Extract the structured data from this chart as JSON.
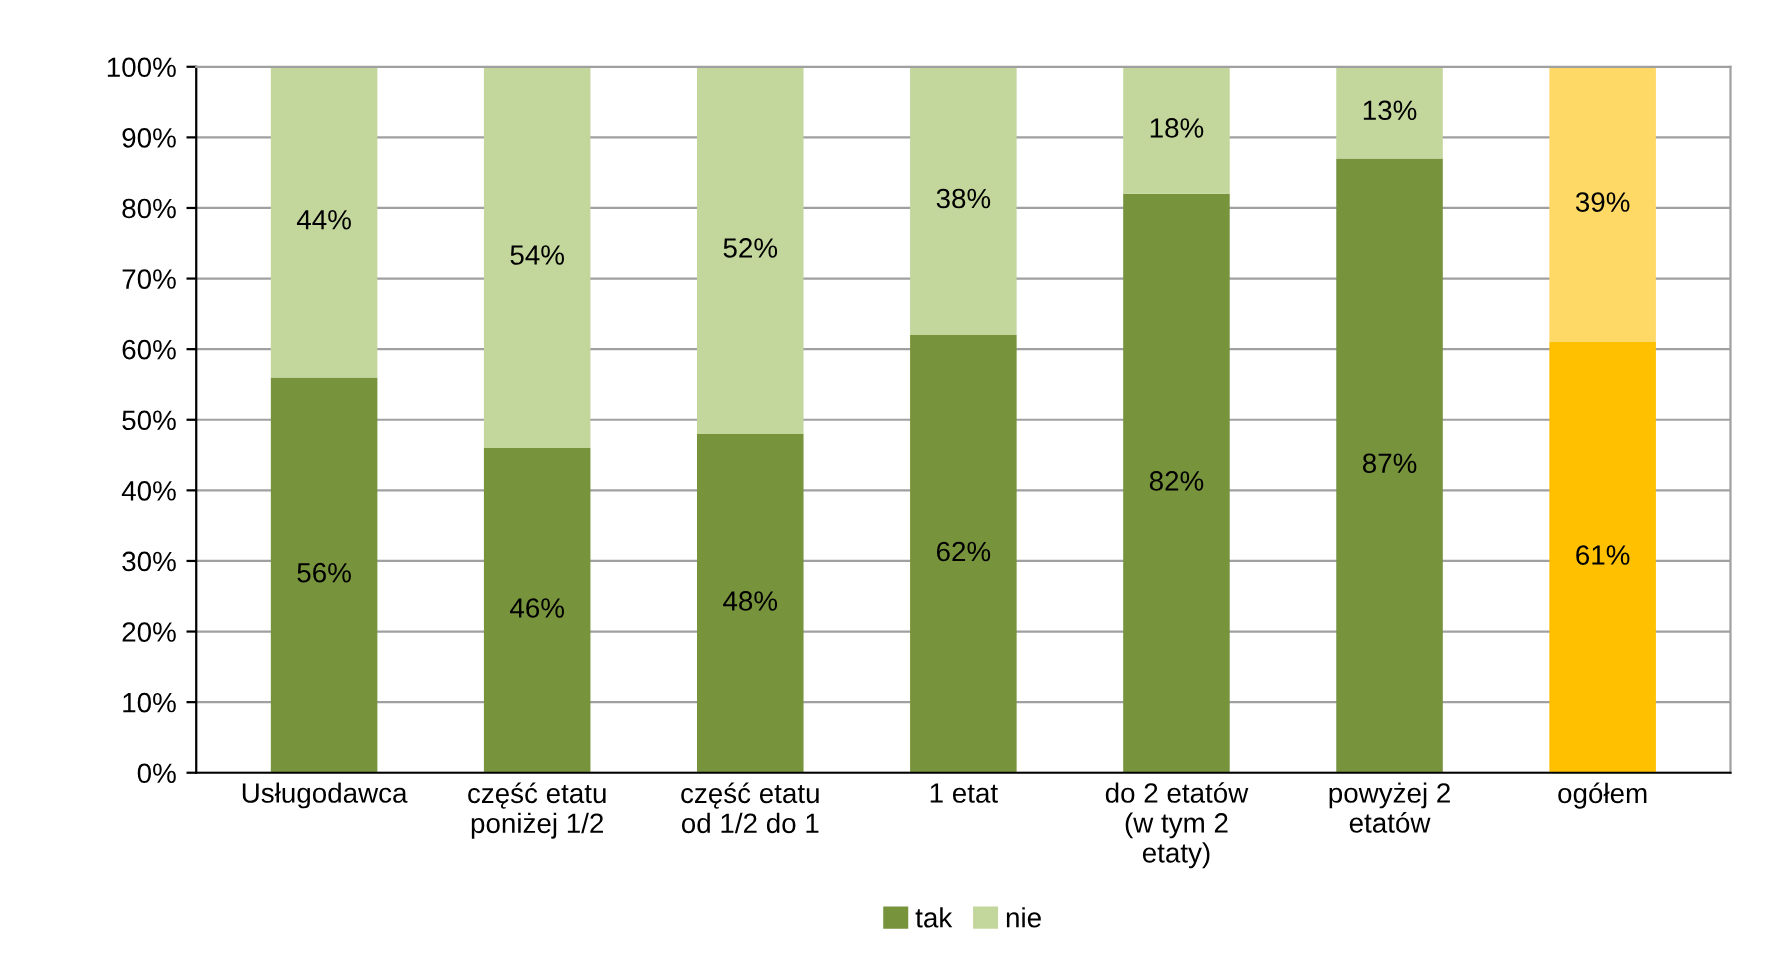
{
  "chart_data": {
    "type": "bar",
    "stacked": true,
    "categories": [
      "Usługodawca",
      "część etatu\nponiżej 1/2",
      "część etatu\nod 1/2 do 1",
      "1 etat",
      "do 2 etatów\n(w tym 2\netaty)",
      "powyżej 2\netatów",
      "ogółem"
    ],
    "series": [
      {
        "name": "tak",
        "color": "#77933c",
        "colors": [
          "#77933c",
          "#77933c",
          "#77933c",
          "#77933c",
          "#77933c",
          "#77933c",
          "#ffc000"
        ],
        "values": [
          56,
          46,
          48,
          62,
          82,
          87,
          61
        ],
        "value_labels": [
          "56%",
          "46%",
          "48%",
          "62%",
          "82%",
          "87%",
          "61%"
        ]
      },
      {
        "name": "nie",
        "color": "#c3d69b",
        "colors": [
          "#c3d69b",
          "#c3d69b",
          "#c3d69b",
          "#c3d69b",
          "#c3d69b",
          "#c3d69b",
          "#ffd966"
        ],
        "values": [
          44,
          54,
          52,
          38,
          18,
          13,
          39
        ],
        "value_labels": [
          "44%",
          "54%",
          "52%",
          "38%",
          "18%",
          "13%",
          "39%"
        ]
      }
    ],
    "ylim": [
      0,
      100
    ],
    "yticks": [
      {
        "value": 0,
        "label": "0%"
      },
      {
        "value": 10,
        "label": "10%"
      },
      {
        "value": 20,
        "label": "20%"
      },
      {
        "value": 30,
        "label": "30%"
      },
      {
        "value": 40,
        "label": "40%"
      },
      {
        "value": 50,
        "label": "50%"
      },
      {
        "value": 60,
        "label": "60%"
      },
      {
        "value": 70,
        "label": "70%"
      },
      {
        "value": 80,
        "label": "80%"
      },
      {
        "value": 90,
        "label": "90%"
      },
      {
        "value": 100,
        "label": "100%"
      }
    ],
    "grid": "y",
    "legend": "bottom"
  }
}
